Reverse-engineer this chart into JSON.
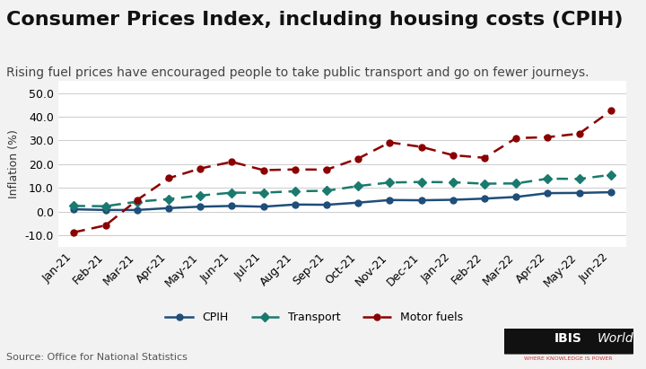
{
  "title": "Consumer Prices Index, including housing costs (CPIH)",
  "subtitle": "Rising fuel prices have encouraged people to take public transport and go on fewer journeys.",
  "ylabel": "Inflation (%)",
  "source": "Source: Office for National Statistics",
  "ylim": [
    -15,
    55
  ],
  "yticks": [
    -10.0,
    0.0,
    10.0,
    20.0,
    30.0,
    40.0,
    50.0
  ],
  "x_labels": [
    "Jan-21",
    "Feb-21",
    "Mar-21",
    "Apr-21",
    "May-21",
    "Jun-21",
    "Jul-21",
    "Aug-21",
    "Sep-21",
    "Oct-21",
    "Nov-21",
    "Dec-21",
    "Jan-22",
    "Feb-22",
    "Mar-22",
    "Apr-22",
    "May-22",
    "Jun-22"
  ],
  "cpih": [
    1.0,
    0.7,
    0.7,
    1.5,
    2.1,
    2.4,
    2.1,
    3.0,
    2.9,
    3.8,
    4.9,
    4.8,
    5.0,
    5.5,
    6.2,
    7.8,
    7.9,
    8.2
  ],
  "transport": [
    2.4,
    2.3,
    4.2,
    5.3,
    6.8,
    8.0,
    8.0,
    8.6,
    8.8,
    10.8,
    12.3,
    12.5,
    12.4,
    11.8,
    11.9,
    13.9,
    13.8,
    15.5
  ],
  "motor_fuels": [
    -8.7,
    -5.8,
    4.9,
    14.1,
    18.2,
    21.0,
    17.5,
    17.8,
    17.7,
    22.4,
    29.2,
    27.3,
    23.8,
    22.7,
    31.0,
    31.4,
    32.9,
    42.5
  ],
  "cpih_color": "#1f4e79",
  "transport_color": "#1a7a6e",
  "motor_fuels_color": "#8b0000",
  "background_color": "#f2f2f2",
  "plot_bg_color": "#ffffff",
  "title_fontsize": 16,
  "subtitle_fontsize": 10,
  "axis_fontsize": 9,
  "ylabel_fontsize": 9
}
